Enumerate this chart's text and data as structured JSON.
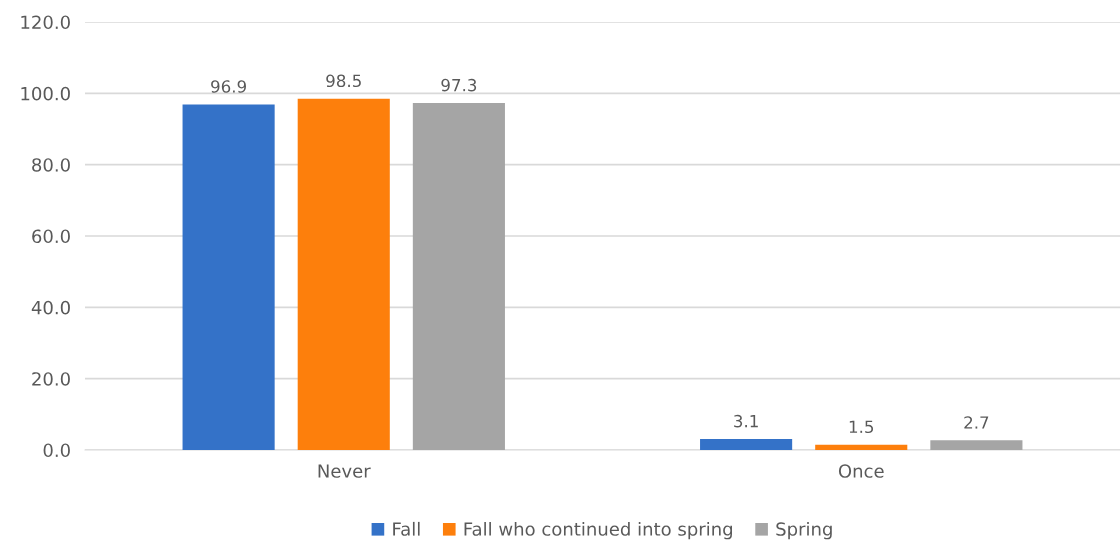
{
  "chart_data": {
    "type": "bar",
    "categories": [
      "Never",
      "Once"
    ],
    "series": [
      {
        "name": "Fall",
        "color": "#3472c8",
        "values": [
          96.9,
          3.1
        ]
      },
      {
        "name": "Fall who continued into spring",
        "color": "#fd7f0c",
        "values": [
          98.5,
          1.5
        ]
      },
      {
        "name": "Spring",
        "color": "#a5a5a5",
        "values": [
          97.3,
          2.7
        ]
      }
    ],
    "ylim": [
      0,
      120
    ],
    "yticks": [
      {
        "value": 0,
        "label": "0.0"
      },
      {
        "value": 20,
        "label": "20.0"
      },
      {
        "value": 40,
        "label": "40.0"
      },
      {
        "value": 60,
        "label": "60.0"
      },
      {
        "value": 80,
        "label": "80.0"
      },
      {
        "value": 100,
        "label": "100.0"
      },
      {
        "value": 120,
        "label": "120.0"
      }
    ],
    "grid": "y",
    "legend": "bottom",
    "data_labels": true
  }
}
